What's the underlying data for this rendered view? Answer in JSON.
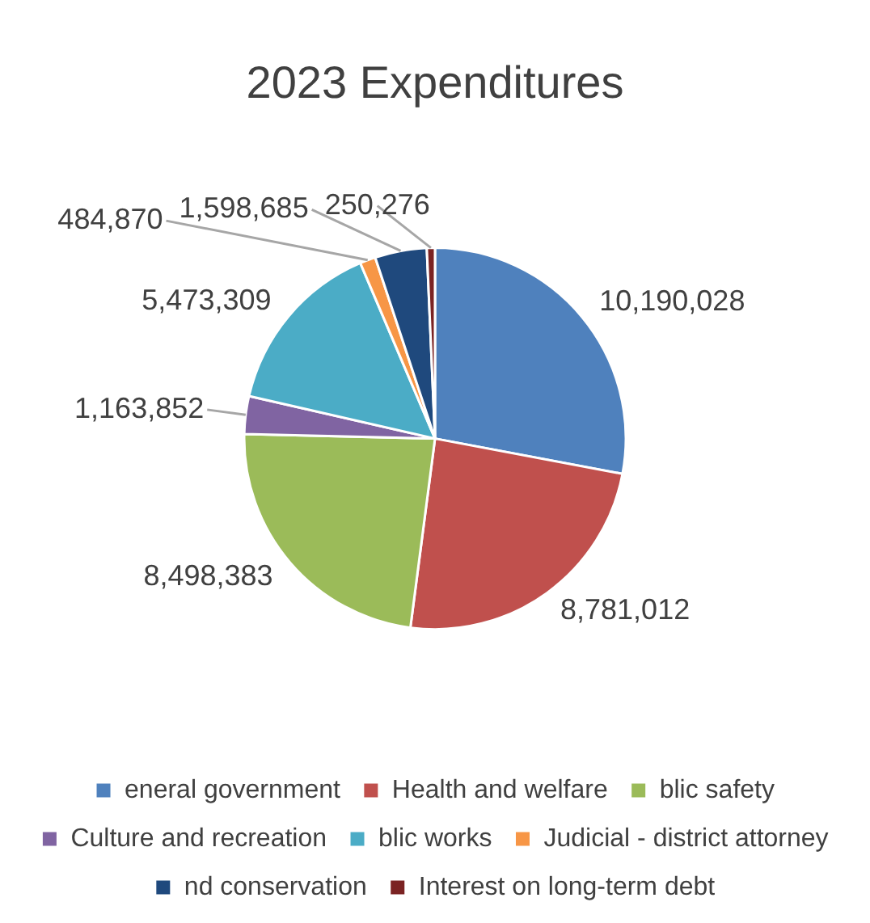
{
  "chart_data": {
    "type": "pie",
    "title": "2023 Expenditures",
    "categories": [
      "eneral government",
      "Health and welfare",
      "blic safety",
      "Culture and recreation",
      "blic works",
      "Judicial - district attorney",
      "nd conservation",
      "Interest on long-term debt"
    ],
    "values": [
      10190028,
      8781012,
      8498383,
      1163852,
      5473309,
      484870,
      1598685,
      250276
    ],
    "colors": [
      "#4f81bd",
      "#c0504d",
      "#9bbb59",
      "#8064a2",
      "#4bacc6",
      "#f79646",
      "#1f497d",
      "#7b2323"
    ],
    "value_labels": [
      "10,190,028",
      "8,781,012",
      "8,498,383",
      "1,163,852",
      "5,473,309",
      "484,870",
      "1,598,685",
      "250,276"
    ],
    "legend": "bottom"
  }
}
